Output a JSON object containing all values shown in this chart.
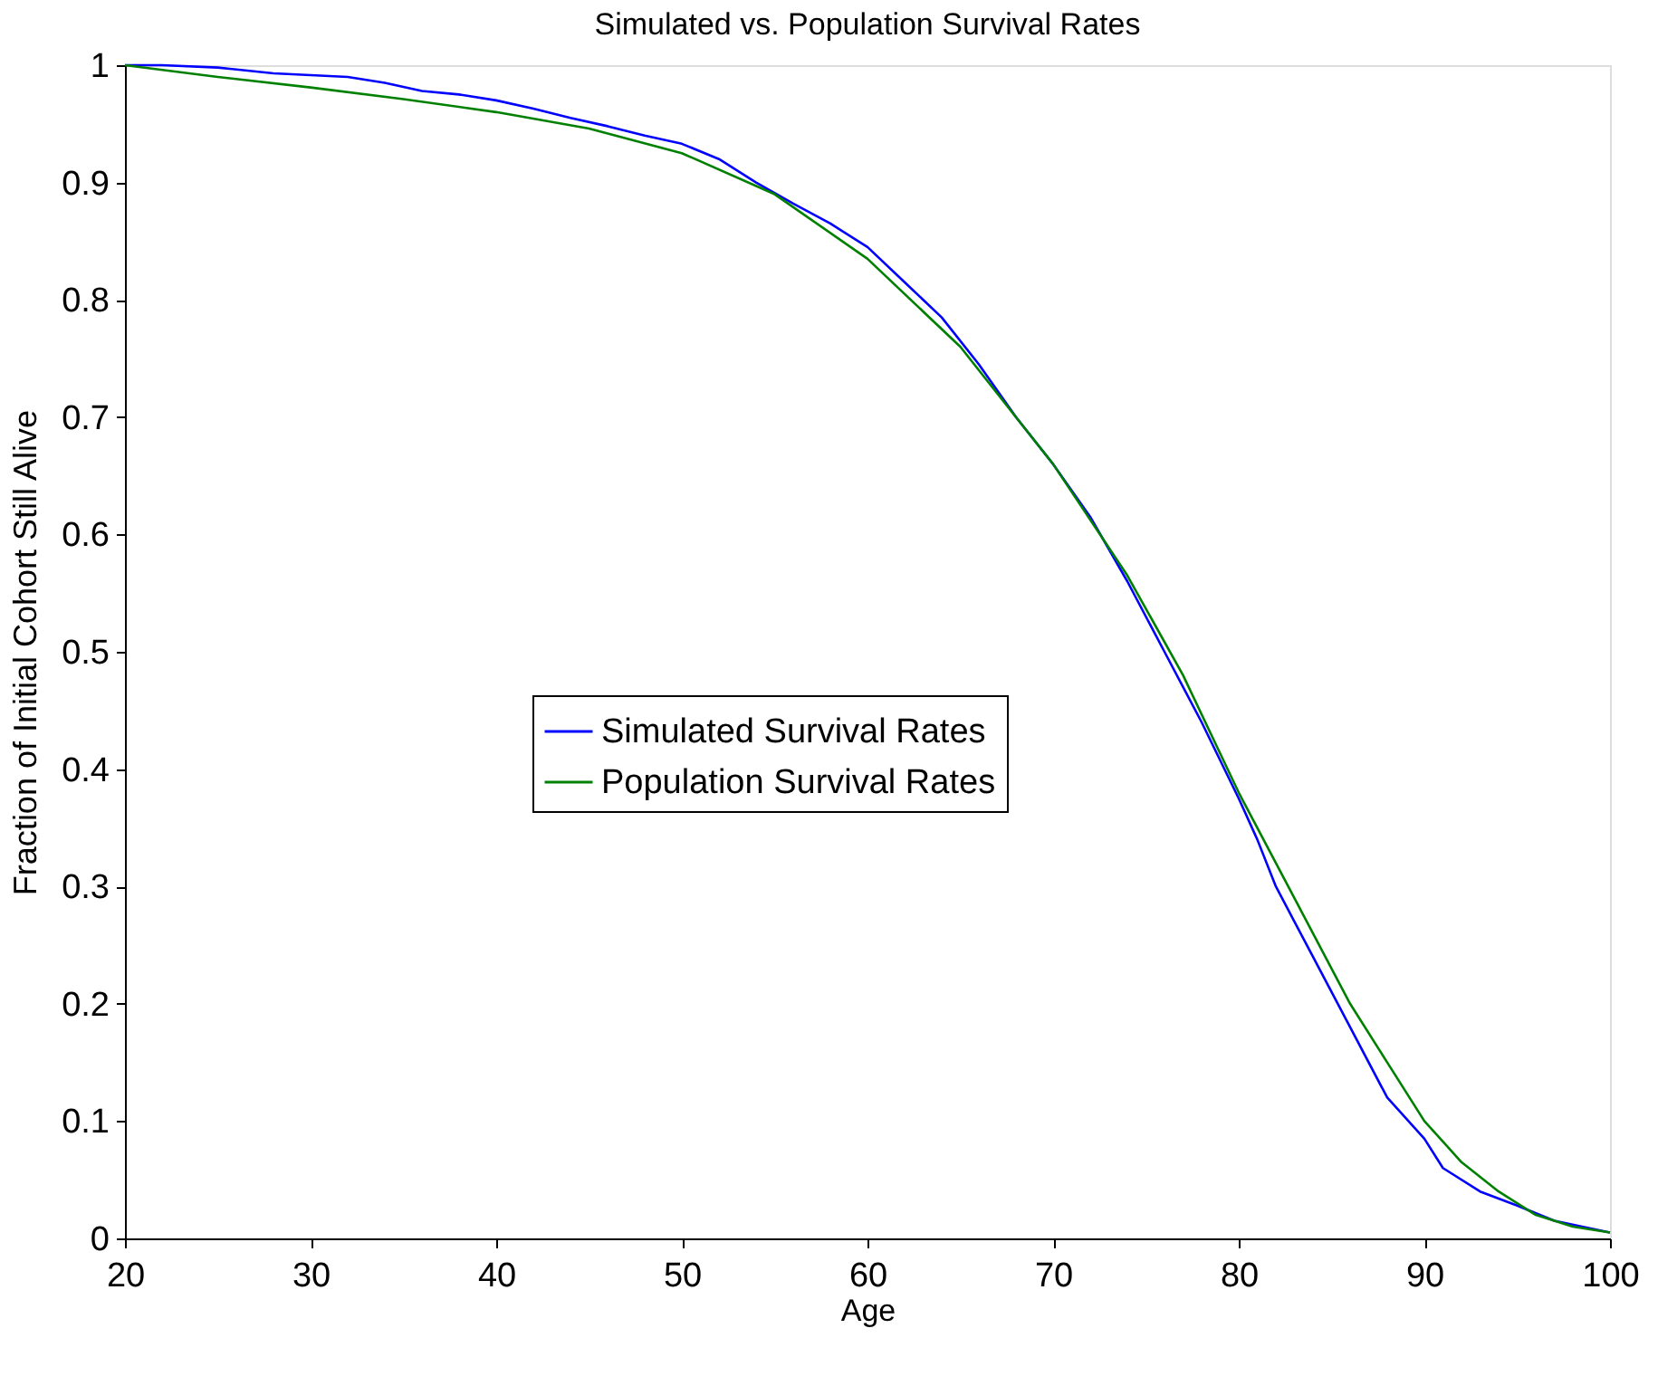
{
  "chart_data": {
    "type": "line",
    "title": "Simulated vs. Population Survival Rates",
    "xlabel": "Age",
    "ylabel": "Fraction of Initial Cohort Still Alive",
    "xlim": [
      20,
      100
    ],
    "xticks": [
      20,
      30,
      40,
      50,
      60,
      70,
      80,
      90,
      100
    ],
    "ylim": [
      0,
      1
    ],
    "yticks": [
      0,
      0.1,
      0.2,
      0.3,
      0.4,
      0.5,
      0.6,
      0.7,
      0.8,
      0.9,
      1
    ],
    "grid": false,
    "legend": "center",
    "line_style": "solid",
    "marker": "none",
    "series": [
      {
        "name": "Simulated Survival Rates",
        "color": "#0000ff",
        "x": [
          20,
          22,
          25,
          28,
          32,
          34,
          36,
          38,
          40,
          42,
          44,
          46,
          48,
          50,
          52,
          54,
          56,
          58,
          60,
          62,
          64,
          66,
          68,
          70,
          72,
          74,
          76,
          78,
          80,
          81,
          82,
          84,
          86,
          88,
          90,
          91,
          93,
          95,
          97,
          100
        ],
        "values": [
          1.0,
          1.0,
          0.998,
          0.993,
          0.99,
          0.985,
          0.978,
          0.975,
          0.97,
          0.963,
          0.955,
          0.948,
          0.94,
          0.933,
          0.92,
          0.9,
          0.882,
          0.865,
          0.845,
          0.815,
          0.785,
          0.745,
          0.7,
          0.66,
          0.615,
          0.56,
          0.5,
          0.44,
          0.375,
          0.34,
          0.3,
          0.24,
          0.18,
          0.12,
          0.085,
          0.06,
          0.04,
          0.028,
          0.015,
          0.005
        ]
      },
      {
        "name": "Population Survival Rates",
        "color": "#008000",
        "x": [
          20,
          25,
          30,
          35,
          40,
          45,
          50,
          55,
          60,
          65,
          70,
          74,
          77,
          80,
          83,
          86,
          88,
          90,
          92,
          94,
          96,
          98,
          100
        ],
        "values": [
          1.0,
          0.99,
          0.981,
          0.971,
          0.96,
          0.946,
          0.925,
          0.89,
          0.835,
          0.76,
          0.66,
          0.565,
          0.48,
          0.38,
          0.29,
          0.2,
          0.15,
          0.1,
          0.065,
          0.04,
          0.02,
          0.01,
          0.005
        ]
      }
    ]
  }
}
